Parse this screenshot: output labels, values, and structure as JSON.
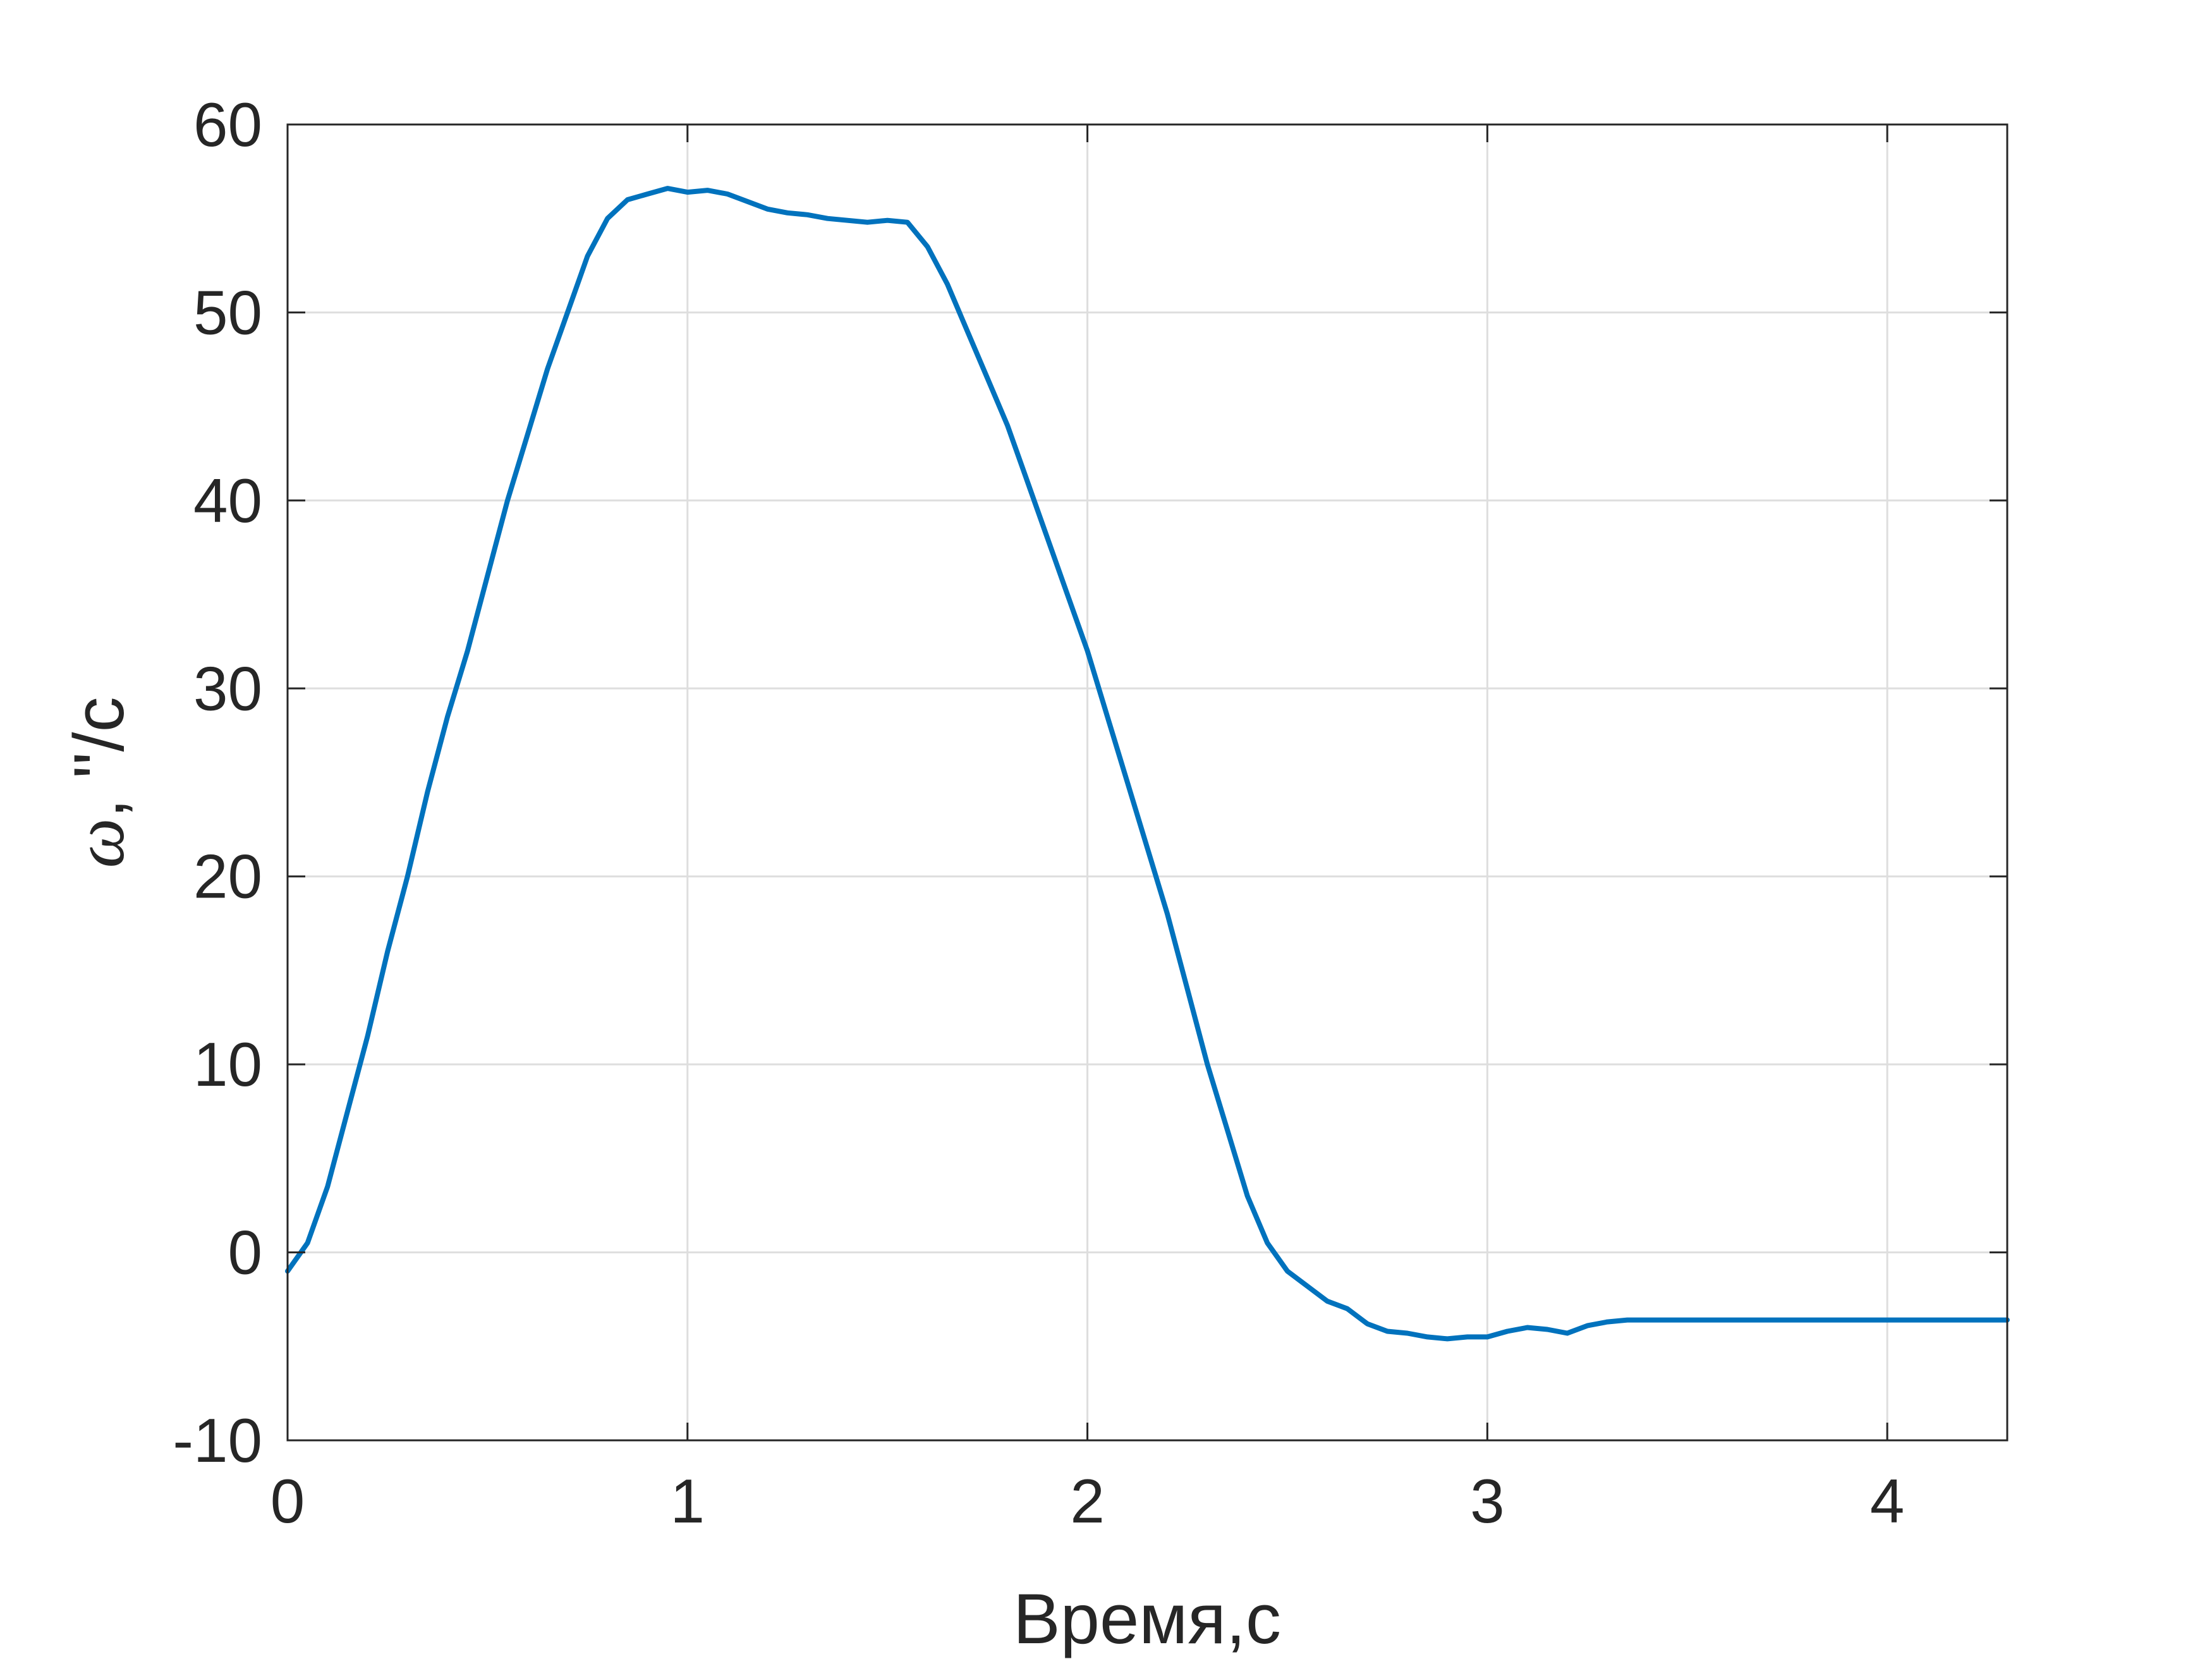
{
  "chart_data": {
    "type": "line",
    "xlabel": "Время,с",
    "ylabel_symbol": "ω",
    "ylabel_rest": ", ''/c",
    "xlim": [
      0,
      4.3
    ],
    "ylim": [
      -10,
      60
    ],
    "xticks": [
      "0",
      "1",
      "2",
      "3",
      "4"
    ],
    "yticks": [
      "-10",
      "0",
      "10",
      "20",
      "30",
      "40",
      "50",
      "60"
    ],
    "grid": true,
    "legend": "none",
    "line_color": "#0072BD",
    "series": [
      {
        "x": [
          0,
          0.05,
          0.1,
          0.15,
          0.2,
          0.25,
          0.3,
          0.35,
          0.4,
          0.45,
          0.5,
          0.55,
          0.6,
          0.65,
          0.7,
          0.75,
          0.8,
          0.85,
          0.9,
          0.95,
          1.0,
          1.05,
          1.1,
          1.15,
          1.2,
          1.25,
          1.3,
          1.35,
          1.4,
          1.45,
          1.5,
          1.55,
          1.6,
          1.65,
          1.7,
          1.75,
          1.8,
          1.85,
          1.9,
          1.95,
          2.0,
          2.05,
          2.1,
          2.15,
          2.2,
          2.25,
          2.3,
          2.35,
          2.4,
          2.45,
          2.5,
          2.55,
          2.6,
          2.65,
          2.7,
          2.75,
          2.8,
          2.85,
          2.9,
          2.95,
          3.0,
          3.05,
          3.1,
          3.15,
          3.2,
          3.25,
          3.3,
          3.35,
          3.4,
          3.45,
          3.5,
          3.55,
          3.6,
          3.65,
          3.7,
          3.75,
          3.8,
          3.85,
          3.9,
          3.95,
          4.0,
          4.05,
          4.1,
          4.15,
          4.2,
          4.25,
          4.3
        ],
        "y": [
          -1.0,
          0.5,
          3.5,
          7.5,
          11.5,
          16.0,
          20.0,
          24.5,
          28.5,
          32.0,
          36.0,
          40.0,
          43.5,
          47.0,
          50.0,
          53.0,
          55.0,
          56.0,
          56.3,
          56.6,
          56.4,
          56.5,
          56.3,
          55.9,
          55.5,
          55.3,
          55.2,
          55.0,
          54.9,
          54.8,
          54.9,
          54.8,
          53.5,
          51.5,
          49.0,
          46.5,
          44.0,
          41.0,
          38.0,
          35.0,
          32.0,
          28.5,
          25.0,
          21.5,
          18.0,
          14.0,
          10.0,
          6.5,
          3.0,
          0.5,
          -1.0,
          -1.8,
          -2.6,
          -3.0,
          -3.8,
          -4.2,
          -4.3,
          -4.5,
          -4.6,
          -4.5,
          -4.5,
          -4.2,
          -4.0,
          -4.1,
          -4.3,
          -3.9,
          -3.7,
          -3.6,
          -3.6,
          -3.6,
          -3.6,
          -3.6,
          -3.6,
          -3.6,
          -3.6,
          -3.6,
          -3.6,
          -3.6,
          -3.6,
          -3.6,
          -3.6,
          -3.6,
          -3.6,
          -3.6,
          -3.6,
          -3.6,
          -3.6
        ]
      }
    ]
  }
}
